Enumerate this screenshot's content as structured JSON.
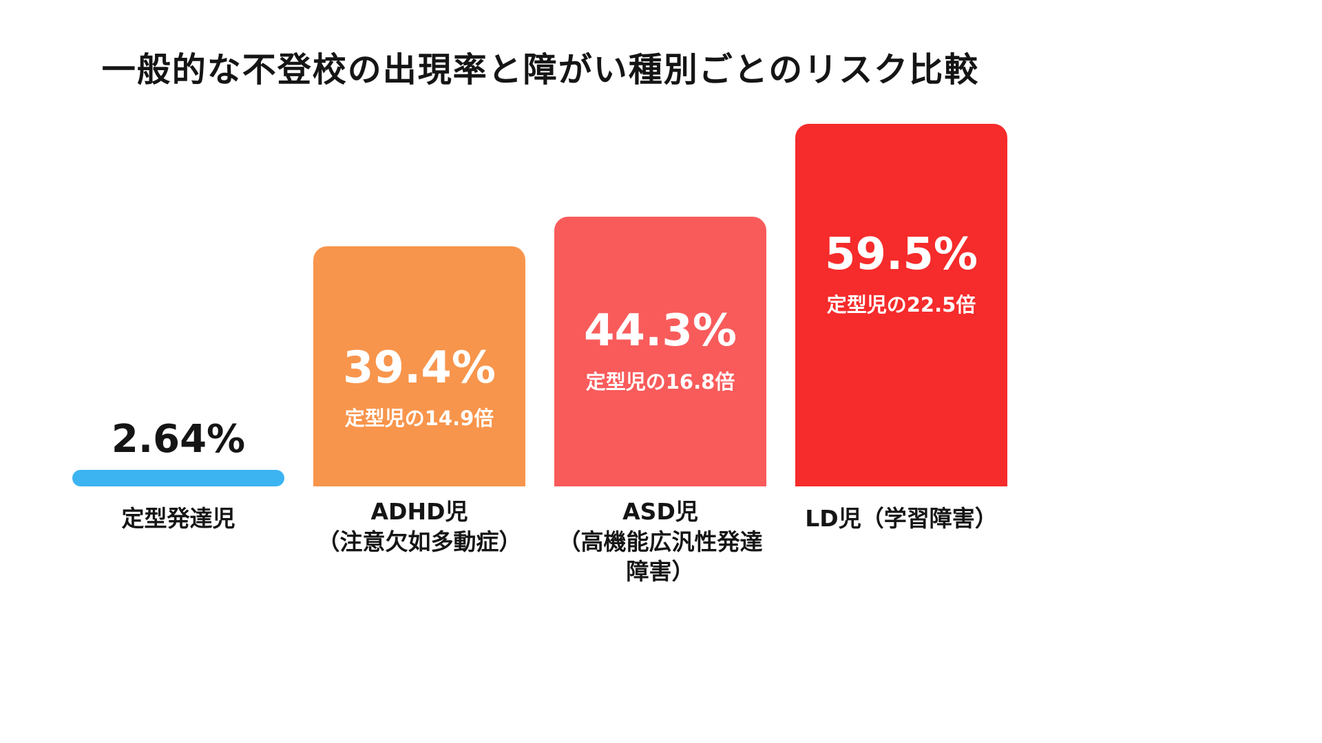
{
  "title": "一般的な不登校の出現率と障がい種別ごとのリスク比較",
  "chart_data": {
    "type": "bar",
    "title": "一般的な不登校の出現率と障がい種別ごとのリスク比較",
    "categories": [
      "定型発達児",
      "ADHD児（注意欠如多動症）",
      "ASD児（高機能広汎性発達障害）",
      "LD児（学習障害）"
    ],
    "values": [
      2.64,
      39.4,
      44.3,
      59.5
    ],
    "unit": "%",
    "ylim": [
      0,
      64
    ],
    "grid": false,
    "legend": "none",
    "bars": [
      {
        "value": 2.64,
        "value_label": "2.64%",
        "multiplier_label": "",
        "category_lines": [
          "定型発達児"
        ],
        "color": "#3CB4F1",
        "value_label_position": "above"
      },
      {
        "value": 39.4,
        "value_label": "39.4%",
        "multiplier_label": "定型児の14.9倍",
        "category_lines": [
          "ADHD児",
          "（注意欠如多動症）"
        ],
        "color": "#F8954C",
        "value_label_position": "inside"
      },
      {
        "value": 44.3,
        "value_label": "44.3%",
        "multiplier_label": "定型児の16.8倍",
        "category_lines": [
          "ASD児",
          "（高機能広汎性発達障害）"
        ],
        "color": "#F95B5B",
        "value_label_position": "inside"
      },
      {
        "value": 59.5,
        "value_label": "59.5%",
        "multiplier_label": "定型児の22.5倍",
        "category_lines": [
          "LD児（学習障害）"
        ],
        "color": "#F62B2B",
        "value_label_position": "inside"
      }
    ]
  }
}
